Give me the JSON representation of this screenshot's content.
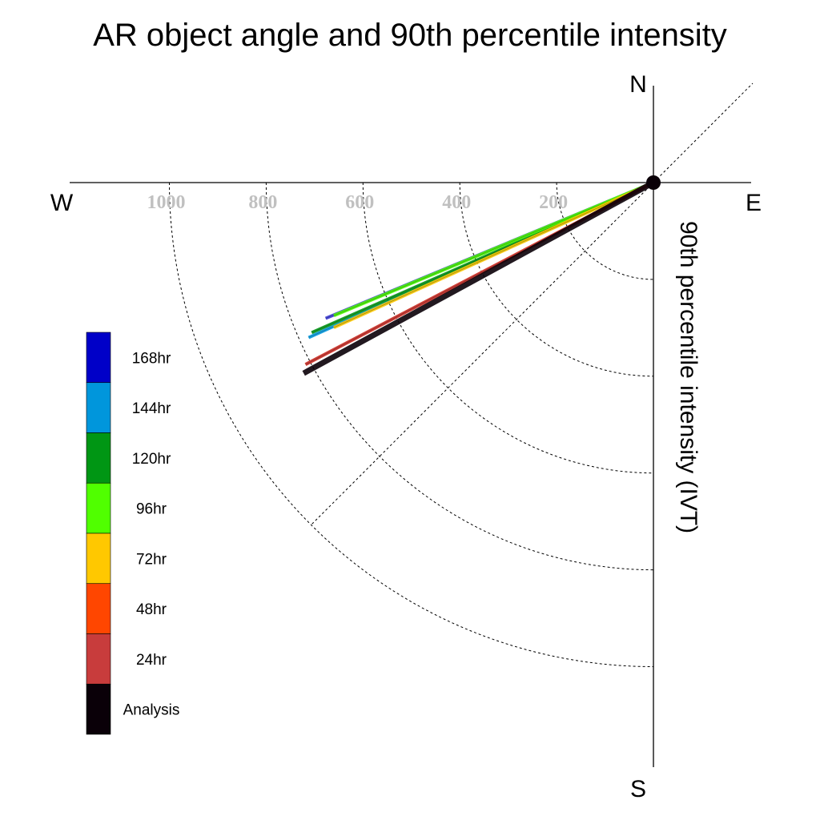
{
  "chart_data": {
    "type": "polar-vector",
    "title": "AR object angle and 90th percentile intensity",
    "radial_label": "90th percentile intensity (IVT)",
    "compass": {
      "north": "N",
      "south": "S",
      "east": "E",
      "west": "W"
    },
    "radial_ticks": [
      200,
      400,
      600,
      800,
      1000
    ],
    "radial_tick_labels": [
      "200",
      "400",
      "600",
      "800",
      "1000"
    ],
    "rmax": 1200,
    "grid": true,
    "legend_position": "left",
    "series": [
      {
        "name": "168hr",
        "color": "#0000c8",
        "angle_deg_below_west": 22.5,
        "ivt": 733
      },
      {
        "name": "144hr",
        "color": "#0096dc",
        "angle_deg_below_west": 24.2,
        "ivt": 781
      },
      {
        "name": "120hr",
        "color": "#009614",
        "angle_deg_below_west": 23.7,
        "ivt": 771
      },
      {
        "name": "96hr",
        "color": "#50ff00",
        "angle_deg_below_west": 22.6,
        "ivt": 715
      },
      {
        "name": "72hr",
        "color": "#ffc800",
        "angle_deg_below_west": 24.4,
        "ivt": 725
      },
      {
        "name": "48hr",
        "color": "#ff4600",
        "angle_deg_below_west": 27.6,
        "ivt": 811
      },
      {
        "name": "24hr",
        "color": "#c83c3c",
        "angle_deg_below_west": 27.6,
        "ivt": 811
      },
      {
        "name": "Analysis",
        "color": "#0a0008",
        "angle_deg_below_west": 28.6,
        "ivt": 823
      }
    ]
  }
}
